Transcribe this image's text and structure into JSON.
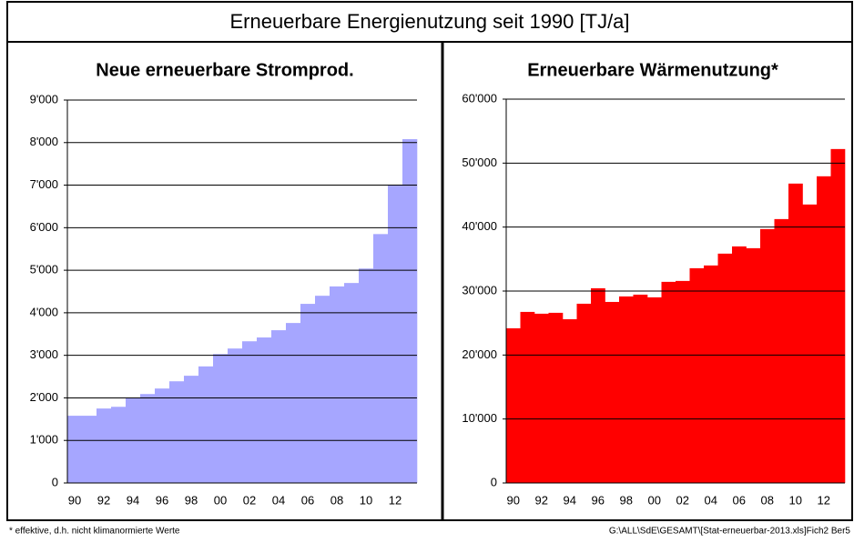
{
  "title": "Erneuerbare Energienutzung seit 1990  [TJ/a]",
  "footnote": "* effektive, d.h. nicht klimanormierte Werte",
  "source": "G:\\ALL\\SdE\\GESAMT\\[Stat-erneuerbar-2013.xls]Fich2    Ber5",
  "chart_data": [
    {
      "type": "bar",
      "title": "Neue erneuerbare Stromprod.",
      "color": "#a6a6ff",
      "grid": true,
      "categories": [
        "90",
        null,
        "92",
        null,
        "94",
        null,
        "96",
        null,
        "98",
        null,
        "00",
        null,
        "02",
        null,
        "04",
        null,
        "06",
        null,
        "08",
        null,
        "10",
        null,
        "12",
        null
      ],
      "values": [
        1580,
        1580,
        1750,
        1790,
        2000,
        2090,
        2220,
        2390,
        2520,
        2740,
        3030,
        3160,
        3330,
        3420,
        3590,
        3760,
        4210,
        4400,
        4620,
        4700,
        5040,
        5850,
        6990,
        8080
      ],
      "ylim": [
        0,
        9000
      ],
      "yticks": [
        0,
        {
          "value": 1000,
          "label": "1'000"
        },
        {
          "value": 2000,
          "label": "2'000"
        },
        {
          "value": 3000,
          "label": "3'000"
        },
        {
          "value": 4000,
          "label": "4'000"
        },
        {
          "value": 5000,
          "label": "5'000"
        },
        {
          "value": 6000,
          "label": "6'000"
        },
        {
          "value": 7000,
          "label": "7'000"
        },
        {
          "value": 8000,
          "label": "8'000"
        },
        {
          "value": 9000,
          "label": "9'000"
        }
      ]
    },
    {
      "type": "bar",
      "title": "Erneuerbare Wärmenutzung*",
      "color": "#ff0000",
      "grid": true,
      "categories": [
        "90",
        null,
        "92",
        null,
        "94",
        null,
        "96",
        null,
        "98",
        null,
        "00",
        null,
        "02",
        null,
        "04",
        null,
        "06",
        null,
        "08",
        null,
        "10",
        null,
        "12",
        null
      ],
      "values": [
        24180,
        26740,
        26460,
        26600,
        25600,
        28020,
        30440,
        28300,
        29160,
        29440,
        29020,
        31440,
        31580,
        33570,
        34000,
        35850,
        36980,
        36700,
        39690,
        41250,
        46800,
        43530,
        47940,
        52200
      ],
      "ylim": [
        0,
        60000
      ],
      "yticks": [
        0,
        {
          "value": 10000,
          "label": "10'000"
        },
        {
          "value": 20000,
          "label": "20'000"
        },
        {
          "value": 30000,
          "label": "30'000"
        },
        {
          "value": 40000,
          "label": "40'000"
        },
        {
          "value": 50000,
          "label": "50'000"
        },
        {
          "value": 60000,
          "label": "60'000"
        }
      ]
    }
  ]
}
